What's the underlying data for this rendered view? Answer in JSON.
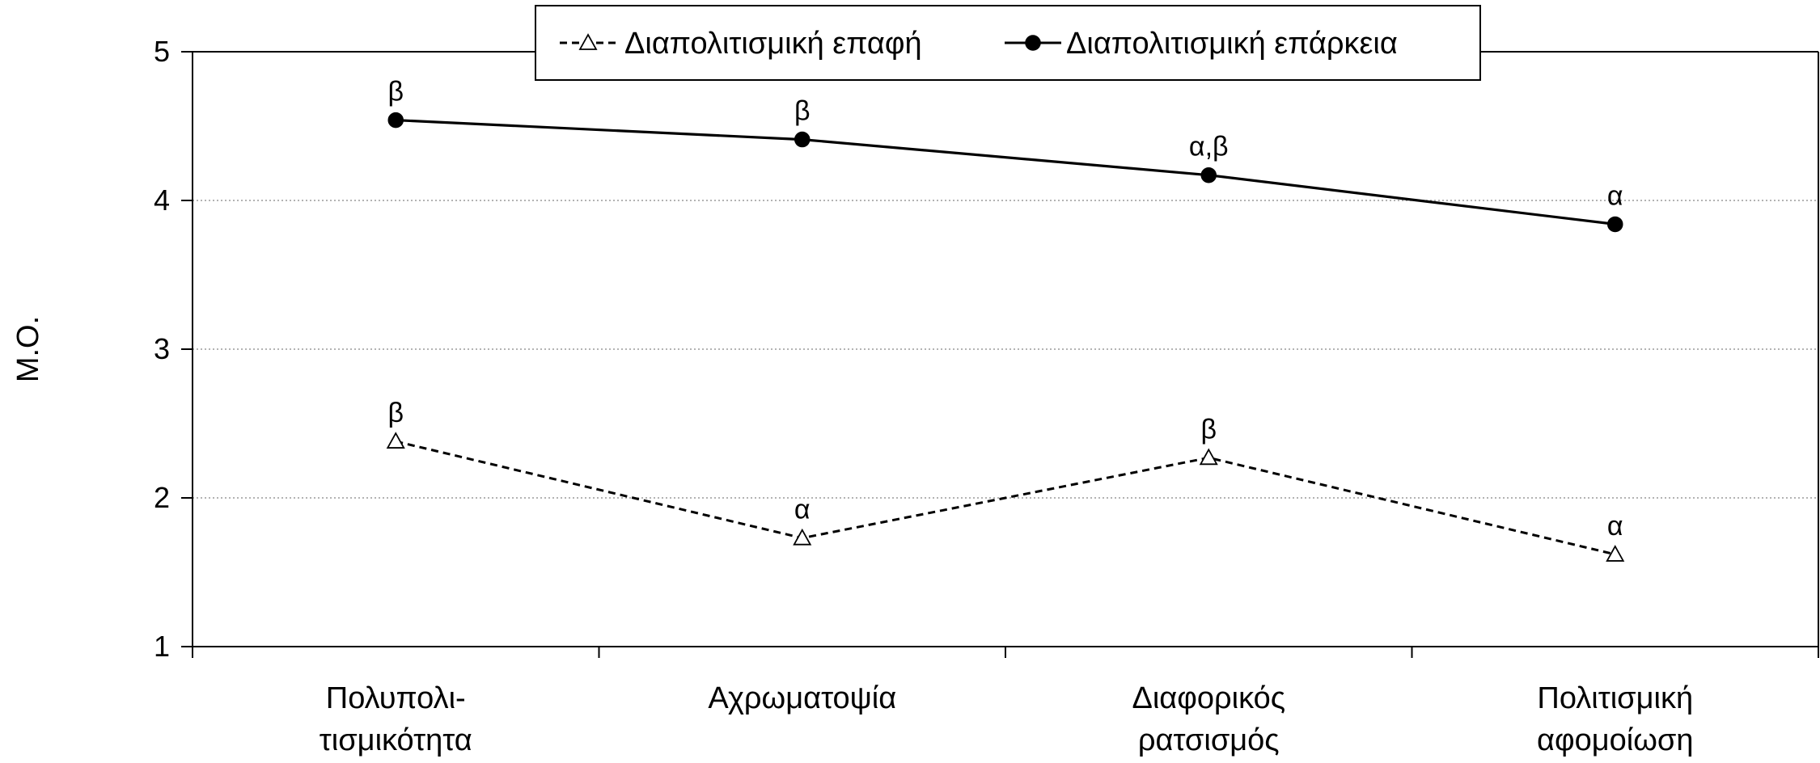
{
  "chart_data": {
    "type": "line",
    "ylabel": "Μ.Ο.",
    "ylim": [
      1,
      5
    ],
    "yticks": [
      "1",
      "2",
      "3",
      "4",
      "5"
    ],
    "grid": "horizontal dotted",
    "legend_position": "top-center",
    "categories": [
      [
        "Πολυπολι-",
        "τισμικότητα"
      ],
      [
        "Αχρωματοψία"
      ],
      [
        "Διαφορικός",
        "ρατσισμός"
      ],
      [
        "Πολιτισμική",
        "αφομοίωση"
      ]
    ],
    "series": [
      {
        "name": "Διαπολιτισμική επαφή",
        "values": [
          2.38,
          1.73,
          2.27,
          1.62
        ],
        "labels": [
          "β",
          "α",
          "β",
          "α"
        ],
        "color": "#000000",
        "line_style": "dashed",
        "marker": "open-triangle"
      },
      {
        "name": "Διαπολιτισμική επάρκεια",
        "values": [
          4.54,
          4.41,
          4.17,
          3.84
        ],
        "labels": [
          "β",
          "β",
          "α,β",
          "α"
        ],
        "color": "#000000",
        "line_style": "solid",
        "marker": "filled-circle"
      }
    ]
  }
}
